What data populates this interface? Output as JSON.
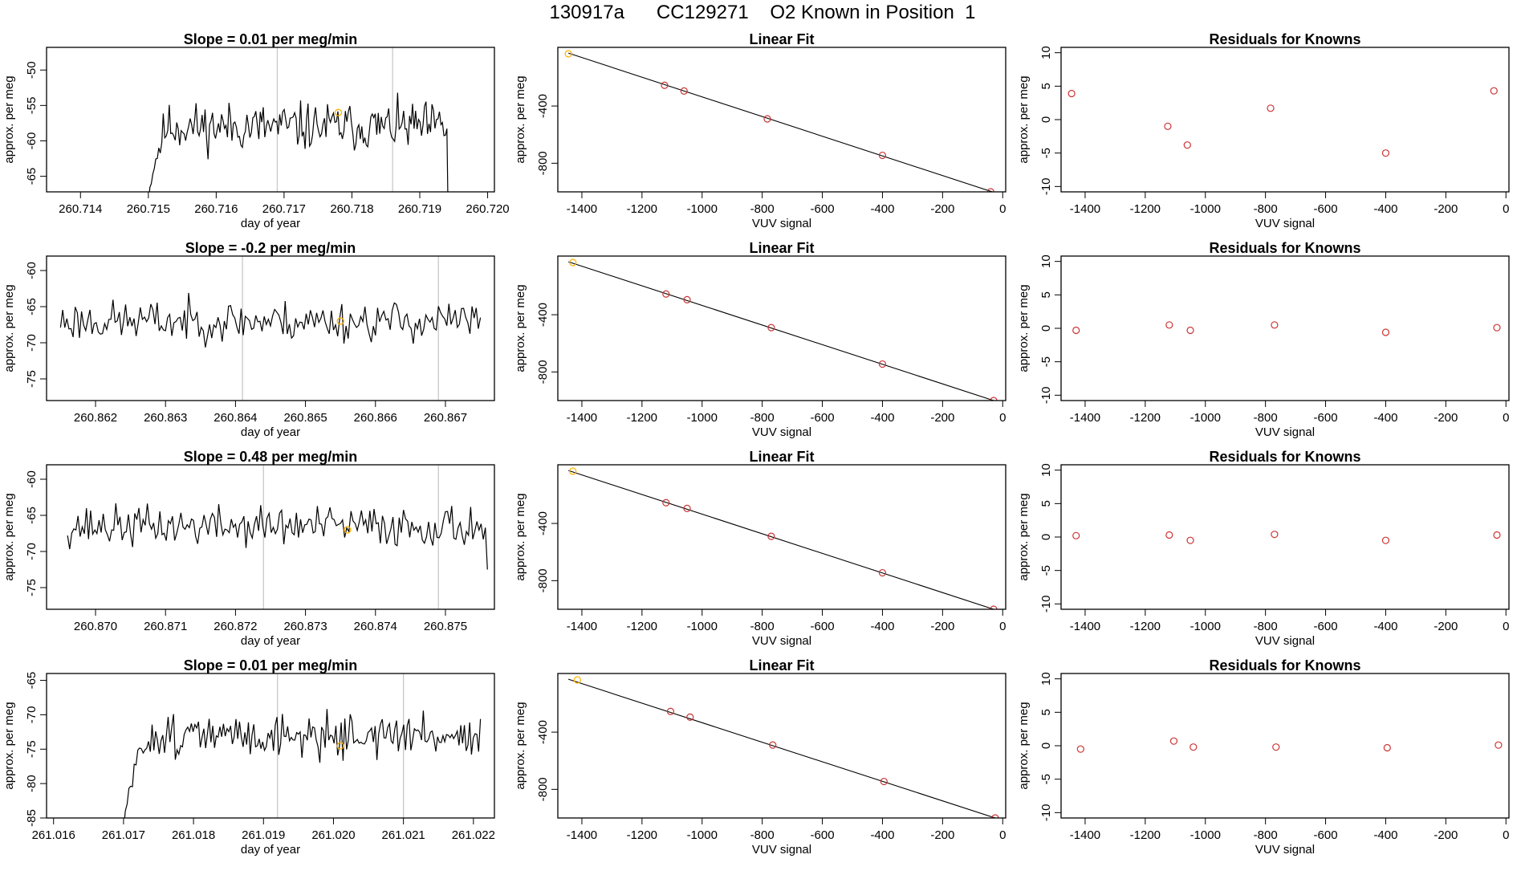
{
  "page": {
    "title": "130917a      CC129271    O2 Known in Position  1"
  },
  "colors": {
    "line": "#000000",
    "point": "#cc3333",
    "highlight": "#ffb000",
    "vline": "#c8c8c8",
    "axis": "#000000"
  },
  "chart_data": [
    {
      "type": "line",
      "title": "Slope =  0.01  per meg/min",
      "xlabel": "day of year",
      "ylabel": "approx. per meg",
      "xlim": [
        260.7135,
        260.7201
      ],
      "ylim": [
        -67.2,
        -46.8
      ],
      "xticks": [
        260.714,
        260.715,
        260.716,
        260.717,
        260.718,
        260.719,
        260.72
      ],
      "xtick_labels": [
        "260.714",
        "260.715",
        "260.716",
        "260.717",
        "260.718",
        "260.719",
        "260.720"
      ],
      "yticks": [
        -65,
        -60,
        -55,
        -50
      ],
      "ytick_labels": [
        "-65",
        "-60",
        "-55",
        "-50"
      ],
      "vlines": [
        260.7169,
        260.7186
      ],
      "highlight": [
        260.7178,
        -56
      ],
      "series": {
        "start": 260.715,
        "end": 260.7194,
        "baseline": -58,
        "noise": 2.4,
        "seed": 11,
        "dropBefore": true,
        "dropAfter": true,
        "rampPts": 12
      }
    },
    {
      "type": "scatter",
      "title": "Linear Fit",
      "xlabel": "VUV signal",
      "ylabel": "approx. per meg",
      "xlim": [
        -1480,
        10
      ],
      "ylim": [
        -1000,
        10
      ],
      "xticks": [
        -1400,
        -1200,
        -1000,
        -800,
        -600,
        -400,
        -200,
        0
      ],
      "xtick_labels": [
        "-1400",
        "-1200",
        "-1000",
        "-800",
        "-600",
        "-400",
        "-200",
        "0"
      ],
      "yticks": [
        -800,
        -400
      ],
      "ytick_labels": [
        "-800",
        "-400"
      ],
      "x": [
        -1445,
        -1125,
        -1060,
        -783,
        -400,
        -40
      ],
      "y": [
        -35,
        -255,
        -295,
        -490,
        -745,
        -1000
      ],
      "fit": [
        [
          -1445,
          -30
        ],
        [
          -20,
          -1010
        ]
      ]
    },
    {
      "type": "scatter",
      "title": "Residuals for Knowns",
      "xlabel": "VUV signal",
      "ylabel": "approx. per meg",
      "xlim": [
        -1480,
        10
      ],
      "ylim": [
        -10.8,
        10.8
      ],
      "xticks": [
        -1400,
        -1200,
        -1000,
        -800,
        -600,
        -400,
        -200,
        0
      ],
      "xtick_labels": [
        "-1400",
        "-1200",
        "-1000",
        "-800",
        "-600",
        "-400",
        "-200",
        "0"
      ],
      "yticks": [
        -10,
        -5,
        0,
        5,
        10
      ],
      "ytick_labels": [
        "-10",
        "-5",
        "0",
        "5",
        "10"
      ],
      "x": [
        -1445,
        -1125,
        -1060,
        -783,
        -400,
        -40
      ],
      "y": [
        3.9,
        -1,
        -3.8,
        1.7,
        -5,
        4.3
      ]
    },
    {
      "type": "line",
      "title": "Slope =  -0.2  per meg/min",
      "xlabel": "day of year",
      "ylabel": "approx. per meg",
      "xlim": [
        260.8613,
        260.8677
      ],
      "ylim": [
        -78,
        -58
      ],
      "xticks": [
        260.862,
        260.863,
        260.864,
        260.865,
        260.866,
        260.867
      ],
      "xtick_labels": [
        "260.862",
        "260.863",
        "260.864",
        "260.865",
        "260.866",
        "260.867"
      ],
      "yticks": [
        -75,
        -70,
        -65,
        -60
      ],
      "ytick_labels": [
        "-75",
        "-70",
        "-65",
        "-60"
      ],
      "vlines": [
        260.8641,
        260.8669
      ],
      "highlight": [
        260.8655,
        -67
      ],
      "series": {
        "start": 260.8615,
        "end": 260.8675,
        "baseline": -67,
        "noise": 2.0,
        "seed": 23
      }
    },
    {
      "type": "scatter",
      "title": "Linear Fit",
      "xlabel": "VUV signal",
      "ylabel": "approx. per meg",
      "xlim": [
        -1480,
        10
      ],
      "ylim": [
        -1000,
        10
      ],
      "xticks": [
        -1400,
        -1200,
        -1000,
        -800,
        -600,
        -400,
        -200,
        0
      ],
      "xtick_labels": [
        "-1400",
        "-1200",
        "-1000",
        "-800",
        "-600",
        "-400",
        "-200",
        "0"
      ],
      "yticks": [
        -800,
        -400
      ],
      "ytick_labels": [
        "-800",
        "-400"
      ],
      "x": [
        -1430,
        -1120,
        -1050,
        -770,
        -400,
        -30
      ],
      "y": [
        -35,
        -255,
        -295,
        -490,
        -745,
        -1000
      ],
      "fit": [
        [
          -1445,
          -30
        ],
        [
          -30,
          -1000
        ]
      ]
    },
    {
      "type": "scatter",
      "title": "Residuals for Knowns",
      "xlabel": "VUV signal",
      "ylabel": "approx. per meg",
      "xlim": [
        -1480,
        10
      ],
      "ylim": [
        -10.8,
        10.8
      ],
      "xticks": [
        -1400,
        -1200,
        -1000,
        -800,
        -600,
        -400,
        -200,
        0
      ],
      "xtick_labels": [
        "-1400",
        "-1200",
        "-1000",
        "-800",
        "-600",
        "-400",
        "-200",
        "0"
      ],
      "yticks": [
        -10,
        -5,
        0,
        5,
        10
      ],
      "ytick_labels": [
        "-10",
        "-5",
        "0",
        "5",
        "10"
      ],
      "x": [
        -1430,
        -1120,
        -1050,
        -770,
        -400,
        -30
      ],
      "y": [
        -0.3,
        0.5,
        -0.3,
        0.5,
        -0.6,
        0.1
      ]
    },
    {
      "type": "line",
      "title": "Slope =  0.48  per meg/min",
      "xlabel": "day of year",
      "ylabel": "approx. per meg",
      "xlim": [
        260.8693,
        260.8757
      ],
      "ylim": [
        -78,
        -58
      ],
      "xticks": [
        260.87,
        260.871,
        260.872,
        260.873,
        260.874,
        260.875
      ],
      "xtick_labels": [
        "260.870",
        "260.871",
        "260.872",
        "260.873",
        "260.874",
        "260.875"
      ],
      "yticks": [
        -75,
        -70,
        -65,
        -60
      ],
      "ytick_labels": [
        "-75",
        "-70",
        "-65",
        "-60"
      ],
      "vlines": [
        260.8724,
        260.8749
      ],
      "highlight": [
        260.8736,
        -67
      ],
      "series": {
        "start": 260.8696,
        "end": 260.8756,
        "baseline": -66.5,
        "noise": 2.0,
        "seed": 37,
        "endValue": -72.5
      }
    },
    {
      "type": "scatter",
      "title": "Linear Fit",
      "xlabel": "VUV signal",
      "ylabel": "approx. per meg",
      "xlim": [
        -1480,
        10
      ],
      "ylim": [
        -1000,
        10
      ],
      "xticks": [
        -1400,
        -1200,
        -1000,
        -800,
        -600,
        -400,
        -200,
        0
      ],
      "xtick_labels": [
        "-1400",
        "-1200",
        "-1000",
        "-800",
        "-600",
        "-400",
        "-200",
        "0"
      ],
      "yticks": [
        -800,
        -400
      ],
      "ytick_labels": [
        "-800",
        "-400"
      ],
      "x": [
        -1430,
        -1120,
        -1050,
        -770,
        -400,
        -30
      ],
      "y": [
        -35,
        -255,
        -295,
        -490,
        -745,
        -1000
      ],
      "fit": [
        [
          -1445,
          -30
        ],
        [
          -30,
          -1000
        ]
      ]
    },
    {
      "type": "scatter",
      "title": "Residuals for Knowns",
      "xlabel": "VUV signal",
      "ylabel": "approx. per meg",
      "xlim": [
        -1480,
        10
      ],
      "ylim": [
        -10.8,
        10.8
      ],
      "xticks": [
        -1400,
        -1200,
        -1000,
        -800,
        -600,
        -400,
        -200,
        0
      ],
      "xtick_labels": [
        "-1400",
        "-1200",
        "-1000",
        "-800",
        "-600",
        "-400",
        "-200",
        "0"
      ],
      "yticks": [
        -10,
        -5,
        0,
        5,
        10
      ],
      "ytick_labels": [
        "-10",
        "-5",
        "0",
        "5",
        "10"
      ],
      "x": [
        -1430,
        -1120,
        -1050,
        -770,
        -400,
        -30
      ],
      "y": [
        0.2,
        0.3,
        -0.5,
        0.4,
        -0.5,
        0.3
      ]
    },
    {
      "type": "line",
      "title": "Slope =  0.01  per meg/min",
      "xlabel": "day of year",
      "ylabel": "approx. per meg",
      "xlim": [
        261.0159,
        261.0223
      ],
      "ylim": [
        -85,
        -64
      ],
      "xticks": [
        261.016,
        261.017,
        261.018,
        261.019,
        261.02,
        261.021,
        261.022
      ],
      "xtick_labels": [
        "261.016",
        "261.017",
        "261.018",
        "261.019",
        "261.020",
        "261.021",
        "261.022"
      ],
      "yticks": [
        -85,
        -80,
        -75,
        -70,
        -65
      ],
      "ytick_labels": [
        "-85",
        "-80",
        "-75",
        "-70",
        "-65"
      ],
      "vlines": [
        261.0192,
        261.021
      ],
      "highlight": [
        261.0201,
        -74.5
      ],
      "series": {
        "start": 261.017,
        "end": 261.0221,
        "baseline": -73,
        "noise": 2.2,
        "seed": 51,
        "dropBefore": true,
        "rampPts": 14
      }
    },
    {
      "type": "scatter",
      "title": "Linear Fit",
      "xlabel": "VUV signal",
      "ylabel": "approx. per meg",
      "xlim": [
        -1480,
        10
      ],
      "ylim": [
        -1000,
        10
      ],
      "xticks": [
        -1400,
        -1200,
        -1000,
        -800,
        -600,
        -400,
        -200,
        0
      ],
      "xtick_labels": [
        "-1400",
        "-1200",
        "-1000",
        "-800",
        "-600",
        "-400",
        "-200",
        "0"
      ],
      "yticks": [
        -800,
        -400
      ],
      "ytick_labels": [
        "-800",
        "-400"
      ],
      "x": [
        -1415,
        -1105,
        -1040,
        -765,
        -395,
        -25
      ],
      "y": [
        -35,
        -255,
        -295,
        -490,
        -745,
        -1000
      ],
      "fit": [
        [
          -1445,
          -30
        ],
        [
          -25,
          -1000
        ]
      ]
    },
    {
      "type": "scatter",
      "title": "Residuals for Knowns",
      "xlabel": "VUV signal",
      "ylabel": "approx. per meg",
      "xlim": [
        -1480,
        10
      ],
      "ylim": [
        -10.8,
        10.8
      ],
      "xticks": [
        -1400,
        -1200,
        -1000,
        -800,
        -600,
        -400,
        -200,
        0
      ],
      "xtick_labels": [
        "-1400",
        "-1200",
        "-1000",
        "-800",
        "-600",
        "-400",
        "-200",
        "0"
      ],
      "yticks": [
        -10,
        -5,
        0,
        5,
        10
      ],
      "ytick_labels": [
        "-10",
        "-5",
        "0",
        "5",
        "10"
      ],
      "x": [
        -1415,
        -1105,
        -1040,
        -765,
        -395,
        -25
      ],
      "y": [
        -0.5,
        0.7,
        -0.2,
        -0.2,
        -0.3,
        0.1
      ]
    }
  ]
}
